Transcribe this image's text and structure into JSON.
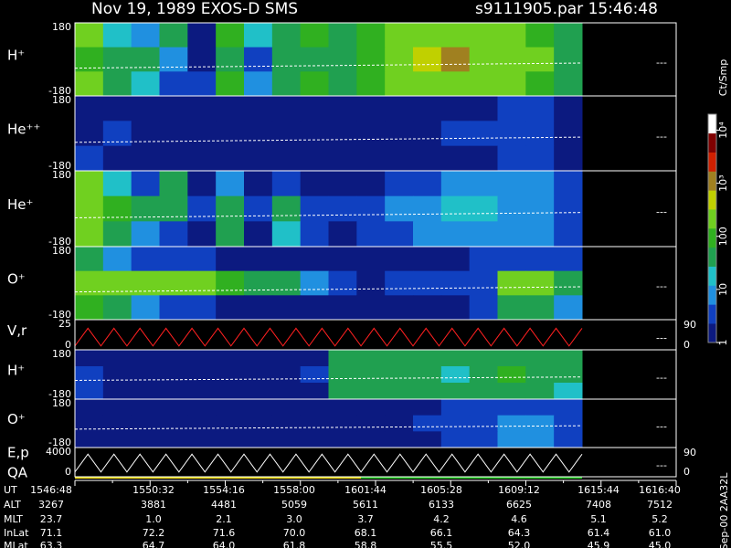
{
  "header": {
    "left": "Nov 19, 1989   EXOS-D SMS",
    "right": "s9111905.par  15:46:48"
  },
  "chart_data": [
    {
      "type": "heatmap",
      "label": "H⁺",
      "ylim": [
        -180,
        180
      ],
      "yticks": [
        180,
        -180
      ],
      "right_marker": "---",
      "values": [
        [
          300,
          20,
          8,
          60,
          2,
          80,
          15,
          30,
          100,
          40,
          80,
          150,
          200,
          300,
          250,
          150,
          120,
          40
        ],
        [
          100,
          40,
          30,
          10,
          2,
          40,
          5,
          60,
          50,
          60,
          120,
          200,
          400,
          800,
          300,
          200,
          150,
          50
        ],
        [
          250,
          30,
          20,
          5,
          3,
          120,
          8,
          40,
          120,
          30,
          100,
          150,
          250,
          300,
          200,
          150,
          120,
          40
        ]
      ]
    },
    {
      "type": "heatmap",
      "label": "He⁺⁺",
      "ylim": [
        -180,
        180
      ],
      "yticks": [
        180,
        -180
      ],
      "right_marker": "---",
      "values": [
        [
          1,
          1,
          1,
          1,
          1,
          1,
          1,
          1,
          1,
          1,
          1,
          1,
          1,
          2,
          2,
          3,
          3,
          2
        ],
        [
          2,
          3,
          2,
          1,
          1,
          2,
          1,
          2,
          1,
          1,
          1,
          1,
          2,
          5,
          3,
          3,
          3,
          2
        ],
        [
          3,
          2,
          1,
          1,
          1,
          1,
          1,
          1,
          1,
          1,
          1,
          1,
          1,
          2,
          2,
          3,
          3,
          2
        ]
      ]
    },
    {
      "type": "heatmap",
      "label": "He⁺",
      "ylim": [
        -180,
        180
      ],
      "yticks": [
        180,
        -180
      ],
      "right_marker": "---",
      "values": [
        [
          200,
          15,
          5,
          30,
          2,
          10,
          2,
          3,
          2,
          1,
          2,
          3,
          5,
          6,
          8,
          8,
          6,
          4
        ],
        [
          300,
          80,
          50,
          30,
          3,
          40,
          4,
          50,
          5,
          3,
          5,
          8,
          10,
          12,
          12,
          10,
          8,
          5
        ],
        [
          150,
          30,
          10,
          5,
          2,
          30,
          2,
          20,
          3,
          2,
          3,
          5,
          6,
          8,
          8,
          8,
          6,
          4
        ]
      ]
    },
    {
      "type": "heatmap",
      "label": "O⁺",
      "ylim": [
        -180,
        180
      ],
      "yticks": [
        180,
        -180
      ],
      "right_marker": "---",
      "values": [
        [
          40,
          8,
          5,
          4,
          3,
          2,
          2,
          1,
          1,
          1,
          1,
          1,
          1,
          2,
          3,
          5,
          5,
          3
        ],
        [
          300,
          250,
          250,
          200,
          150,
          100,
          60,
          30,
          10,
          4,
          2,
          3,
          3,
          3,
          5,
          300,
          250,
          60
        ],
        [
          100,
          30,
          10,
          5,
          3,
          2,
          2,
          1,
          1,
          1,
          1,
          1,
          1,
          2,
          3,
          40,
          30,
          10
        ]
      ]
    },
    {
      "type": "line",
      "label": "V,r",
      "color": "#ff2020",
      "ylim": [
        0,
        25
      ],
      "yticks": [
        25,
        0
      ],
      "y2lim": [
        0,
        90
      ],
      "y2ticks": [
        90,
        0
      ],
      "right_marker": "---",
      "values": [
        2,
        20,
        2,
        20,
        2,
        20,
        2,
        20,
        2,
        20,
        2,
        20,
        2,
        20,
        2,
        20,
        2,
        20,
        2,
        20,
        2,
        20,
        2,
        20,
        2,
        20,
        2,
        20,
        2,
        20,
        2,
        20,
        2,
        20,
        2,
        20,
        2,
        20,
        2,
        20
      ]
    },
    {
      "type": "heatmap",
      "label": "H⁺",
      "ylim": [
        -180,
        180
      ],
      "yticks": [
        180,
        -180
      ],
      "right_marker": "---",
      "values": [
        [
          2,
          1,
          1,
          1,
          2,
          2,
          1,
          1,
          2,
          40,
          60,
          60,
          50,
          40,
          40,
          60,
          50,
          30
        ],
        [
          3,
          2,
          2,
          1,
          2,
          2,
          1,
          2,
          3,
          30,
          40,
          40,
          30,
          20,
          30,
          80,
          60,
          30
        ],
        [
          3,
          1,
          1,
          1,
          1,
          1,
          1,
          1,
          2,
          40,
          60,
          50,
          40,
          30,
          40,
          60,
          50,
          20
        ]
      ]
    },
    {
      "type": "heatmap",
      "label": "O⁺",
      "ylim": [
        -180,
        180
      ],
      "yticks": [
        180,
        -180
      ],
      "right_marker": "---",
      "values": [
        [
          1,
          1,
          1,
          1,
          1,
          1,
          1,
          1,
          1,
          1,
          1,
          2,
          2,
          3,
          4,
          4,
          4,
          3
        ],
        [
          1,
          1,
          1,
          1,
          1,
          1,
          1,
          1,
          1,
          1,
          2,
          2,
          3,
          4,
          5,
          6,
          6,
          4
        ],
        [
          1,
          1,
          1,
          1,
          1,
          1,
          1,
          1,
          1,
          1,
          1,
          2,
          2,
          4,
          5,
          6,
          6,
          4
        ]
      ]
    },
    {
      "type": "line",
      "label": "E,p",
      "label2": "QA",
      "color": "#ffffff",
      "ylim": [
        0,
        4000
      ],
      "yticks": [
        4000,
        0
      ],
      "y2lim": [
        0,
        90
      ],
      "y2ticks": [
        90,
        0
      ],
      "right_marker": "---",
      "values": [
        500,
        3500,
        500,
        3500,
        500,
        3500,
        500,
        3500,
        500,
        3500,
        500,
        3500,
        500,
        3500,
        500,
        3500,
        500,
        3500,
        500,
        3500,
        500,
        3500,
        500,
        3500,
        500,
        3500,
        500,
        3500,
        500,
        3500,
        500,
        3500,
        500,
        3500,
        500,
        3500,
        500,
        3500,
        500,
        3500
      ]
    }
  ],
  "colorbar": {
    "label": "Ct/Smp",
    "lim": [
      1,
      20000
    ],
    "log": true,
    "colors": [
      "#0c1a80",
      "#1040c0",
      "#2090e0",
      "#20c0c8",
      "#20a050",
      "#30b020",
      "#70d020",
      "#c0d000",
      "#a08020",
      "#d02000",
      "#800000",
      "#ffffff"
    ],
    "ticks": [
      {
        "value": 1,
        "label": "1"
      },
      {
        "value": 10,
        "label": "10"
      },
      {
        "value": 100,
        "label": "100"
      },
      {
        "value": 1000,
        "label": "10³"
      },
      {
        "value": 10000,
        "label": "10⁴"
      }
    ]
  },
  "table": {
    "rows": [
      {
        "label": "UT",
        "cells": [
          "1546:48",
          "1550:32",
          "1554:16",
          "1558:00",
          "1601:44",
          "1605:28",
          "1609:12",
          "1615:44",
          "1616:40"
        ]
      },
      {
        "label": "ALT",
        "cells": [
          "3267",
          "3881",
          "4481",
          "5059",
          "5611",
          "6133",
          "6625",
          "7408",
          "7512"
        ]
      },
      {
        "label": "MLT",
        "cells": [
          "23.7",
          "1.0",
          "2.1",
          "3.0",
          "3.7",
          "4.2",
          "4.6",
          "5.1",
          "5.2"
        ]
      },
      {
        "label": "InLat",
        "cells": [
          "71.1",
          "72.2",
          "71.6",
          "70.0",
          "68.1",
          "66.1",
          "64.3",
          "61.4",
          "61.0"
        ]
      },
      {
        "label": "MLat",
        "cells": [
          "63.3",
          "64.7",
          "64.0",
          "61.8",
          "58.8",
          "55.5",
          "52.0",
          "45.9",
          "45.0"
        ]
      }
    ]
  },
  "footer": "Sep-00  2AA32L"
}
